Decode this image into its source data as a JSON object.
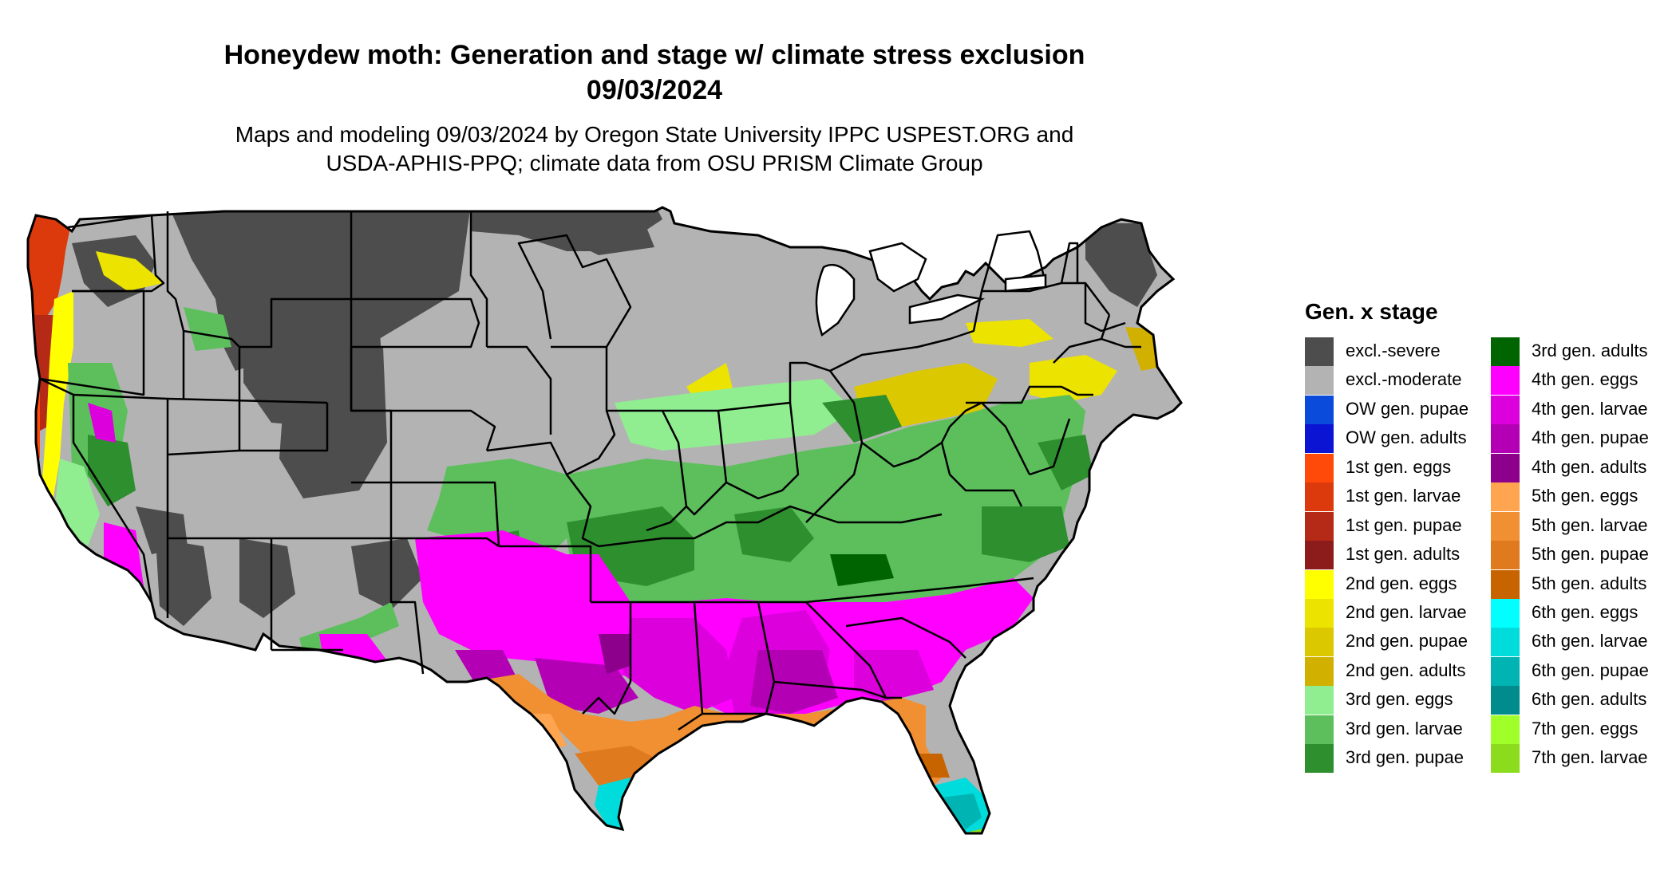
{
  "title": {
    "line1": "Honeydew moth: Generation and stage w/ climate stress exclusion",
    "line2": "09/03/2024"
  },
  "subtitle": {
    "line1": "Maps and modeling 09/03/2024 by Oregon State University IPPC USPEST.ORG and",
    "line2": "USDA-APHIS-PPQ; climate data from OSU PRISM Climate Group"
  },
  "legend": {
    "title": "Gen. x stage",
    "column1": [
      {
        "label": "excl.-severe",
        "color": "#4d4d4d"
      },
      {
        "label": "excl.-moderate",
        "color": "#b3b3b3"
      },
      {
        "label": "OW gen. pupae",
        "color": "#0a4bdc"
      },
      {
        "label": "OW gen. adults",
        "color": "#0a14d2"
      },
      {
        "label": "1st gen. eggs",
        "color": "#ff4a0a"
      },
      {
        "label": "1st gen. larvae",
        "color": "#dc3a0c"
      },
      {
        "label": "1st gen. pupae",
        "color": "#b42a16"
      },
      {
        "label": "1st gen. adults",
        "color": "#8c1c1c"
      },
      {
        "label": "2nd gen. eggs",
        "color": "#ffff00"
      },
      {
        "label": "2nd gen. larvae",
        "color": "#ece400"
      },
      {
        "label": "2nd gen. pupae",
        "color": "#dcc800"
      },
      {
        "label": "2nd gen. adults",
        "color": "#d2b000"
      },
      {
        "label": "3rd gen. eggs",
        "color": "#90ee90"
      },
      {
        "label": "3rd gen. larvae",
        "color": "#5cbf5c"
      },
      {
        "label": "3rd gen. pupae",
        "color": "#2e8f2e"
      }
    ],
    "column2": [
      {
        "label": "3rd gen. adults",
        "color": "#006400"
      },
      {
        "label": "4th gen. eggs",
        "color": "#ff00ff"
      },
      {
        "label": "4th gen. larvae",
        "color": "#dc00dc"
      },
      {
        "label": "4th gen. pupae",
        "color": "#b400b4"
      },
      {
        "label": "4th gen. adults",
        "color": "#8c008c"
      },
      {
        "label": "5th gen. eggs",
        "color": "#ffa550"
      },
      {
        "label": "5th gen. larvae",
        "color": "#f09032"
      },
      {
        "label": "5th gen. pupae",
        "color": "#e07a1e"
      },
      {
        "label": "5th gen. adults",
        "color": "#c86400"
      },
      {
        "label": "6th gen. eggs",
        "color": "#00ffff"
      },
      {
        "label": "6th gen. larvae",
        "color": "#00dcdc"
      },
      {
        "label": "6th gen. pupae",
        "color": "#00b4b4"
      },
      {
        "label": "6th gen. adults",
        "color": "#008c8c"
      },
      {
        "label": "7th gen. eggs",
        "color": "#a0ff28"
      },
      {
        "label": "7th gen. larvae",
        "color": "#8cdc1e"
      }
    ]
  }
}
